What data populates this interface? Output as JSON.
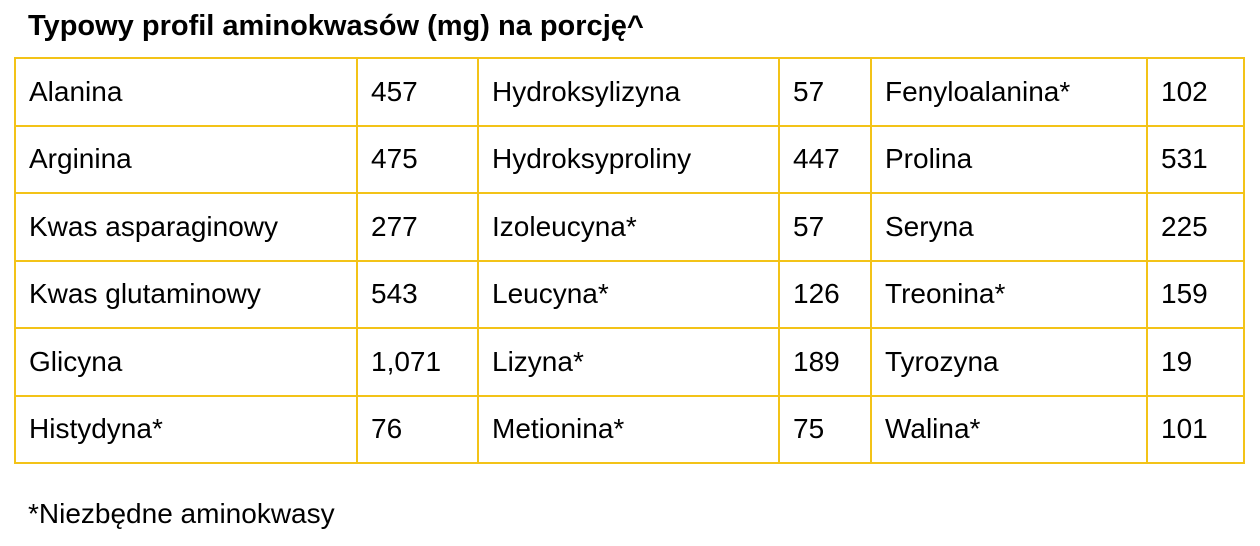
{
  "header": {
    "title": "Typowy profil aminokwasów (mg) na porcję^"
  },
  "table": {
    "rows": [
      [
        "Alanina",
        "457",
        "Hydroksylizyna",
        "57",
        "Fenyloalanina*",
        "102"
      ],
      [
        "Arginina",
        "475",
        "Hydroksyproliny",
        "447",
        "Prolina",
        "531"
      ],
      [
        "Kwas asparaginowy",
        "277",
        "Izoleucyna*",
        "57",
        "Seryna",
        "225"
      ],
      [
        "Kwas glutaminowy",
        "543",
        "Leucyna*",
        "126",
        "Treonina*",
        "159"
      ],
      [
        "Glicyna",
        "1,071",
        "Lizyna*",
        "189",
        "Tyrozyna",
        "19"
      ],
      [
        "Histydyna*",
        "76",
        "Metionina*",
        "75",
        "Walina*",
        "101"
      ]
    ]
  },
  "footnote": "*Niezbędne aminokwasy"
}
